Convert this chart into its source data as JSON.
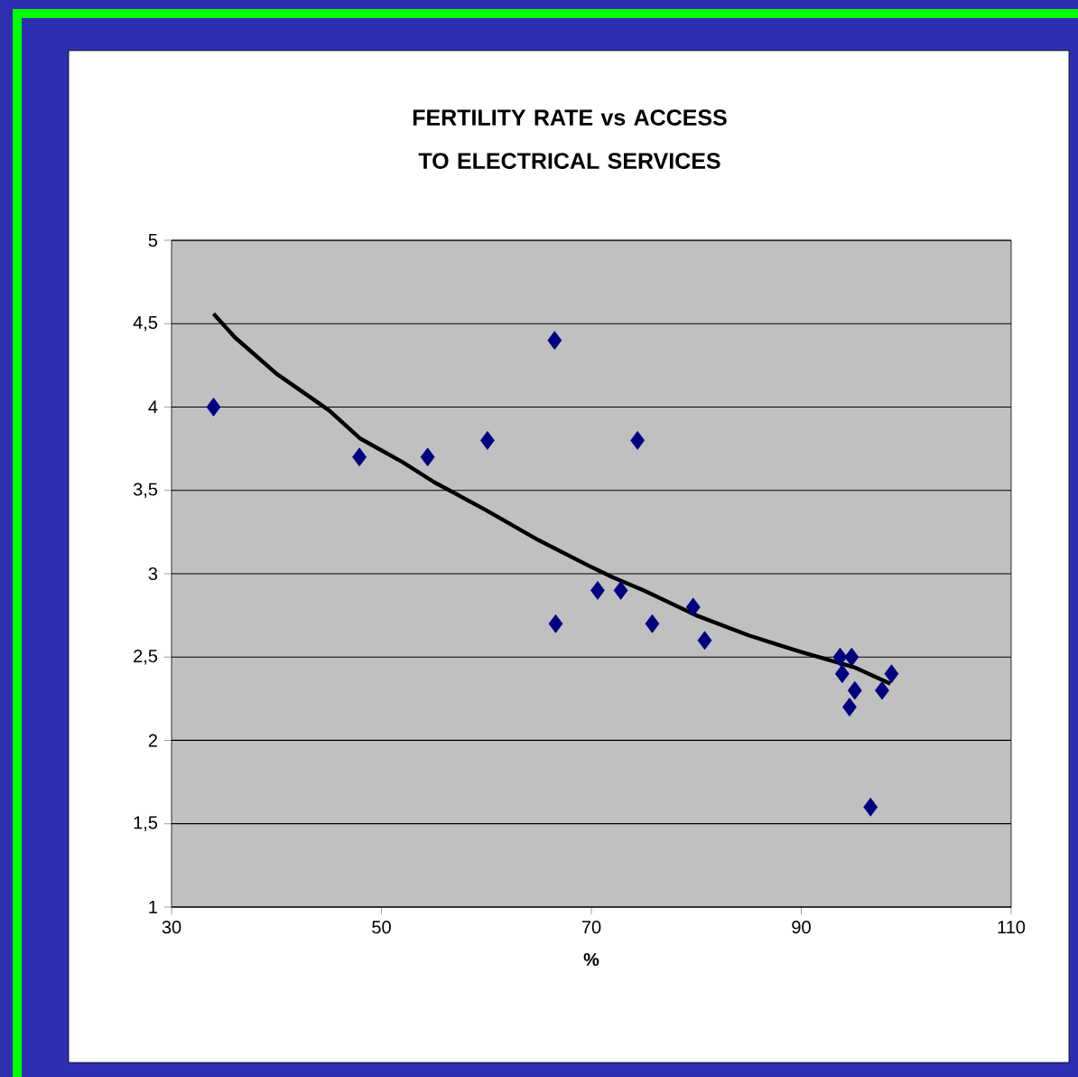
{
  "chart_data": {
    "type": "scatter",
    "title": "FERTILITY RATE vs ACCESS TO ELECTRICAL SERVICES",
    "xlabel": "%",
    "xlim": [
      30,
      110
    ],
    "xticks": [
      30,
      50,
      70,
      90,
      110
    ],
    "ylim": [
      1,
      5
    ],
    "yticks": [
      1,
      {
        "value": 1.5,
        "label": "1,5"
      },
      2,
      {
        "value": 2.5,
        "label": "2,5"
      },
      3,
      {
        "value": 3.5,
        "label": "3,5"
      },
      4,
      {
        "value": 4.5,
        "label": "4,5"
      },
      5
    ],
    "grid": "y",
    "marker": "diamond",
    "series": [
      {
        "color": "#000080",
        "x": [
          34.0,
          47.9,
          54.4,
          60.1,
          66.5,
          66.6,
          74.4,
          70.6,
          72.8,
          75.8,
          79.7,
          80.8,
          93.7,
          94.8,
          93.9,
          95.1,
          94.6,
          97.7,
          98.6,
          96.6
        ],
        "values": [
          4.0,
          3.7,
          3.7,
          3.8,
          4.4,
          2.7,
          3.8,
          2.9,
          2.9,
          2.7,
          2.8,
          2.6,
          2.5,
          2.5,
          2.4,
          2.3,
          2.2,
          2.3,
          2.4,
          1.6
        ]
      },
      {
        "type": "line",
        "color": "#000000",
        "marker": "none",
        "x": [
          34,
          36,
          40,
          45,
          48,
          52,
          55,
          60,
          65,
          70,
          72,
          75,
          80,
          85,
          88,
          90,
          95,
          98.5
        ],
        "values": [
          4.56,
          4.42,
          4.2,
          3.98,
          3.81,
          3.67,
          3.55,
          3.38,
          3.2,
          3.04,
          2.98,
          2.9,
          2.75,
          2.63,
          2.57,
          2.53,
          2.44,
          2.34
        ]
      }
    ]
  }
}
